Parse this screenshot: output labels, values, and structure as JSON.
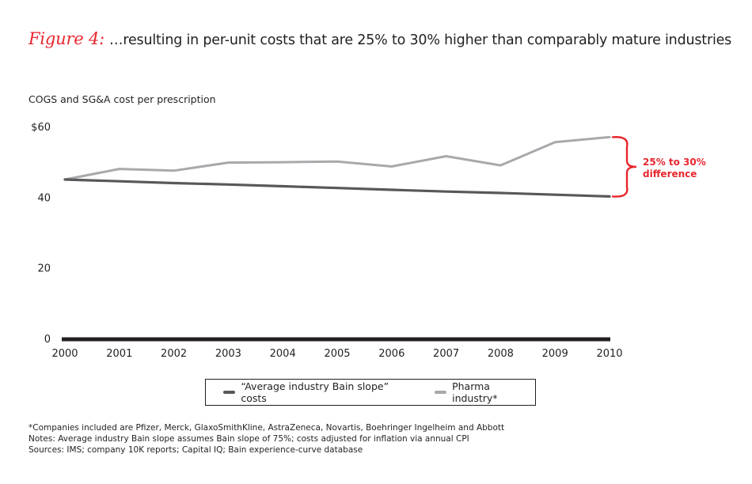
{
  "header": {
    "figure_label": "Figure 4:",
    "title": "…resulting in per-unit costs that are 25% to 30% higher than comparably mature industries"
  },
  "colors": {
    "accent_red": "#e8262e",
    "bain_line": "#58585a",
    "pharma_line": "#a7a9ac",
    "axis": "#231f20"
  },
  "chart_data": {
    "type": "line",
    "title": "…resulting in per-unit costs that are 25% to 30% higher than comparably mature industries",
    "xlabel": "",
    "ylabel": "COGS and SG&A cost per prescription",
    "x": [
      2000,
      2001,
      2002,
      2003,
      2004,
      2005,
      2006,
      2007,
      2008,
      2009,
      2010
    ],
    "x_tick_labels": [
      "2000",
      "2001",
      "2002",
      "2003",
      "2004",
      "2005",
      "2006",
      "2007",
      "2008",
      "2009",
      "2010"
    ],
    "y_ticks": [
      0,
      20,
      40,
      60
    ],
    "y_tick_labels": [
      "0",
      "20",
      "40",
      "$60"
    ],
    "ylim": [
      0,
      60
    ],
    "grid": false,
    "series": [
      {
        "name": "“Average industry Bain slope” costs",
        "color": "#58585a",
        "values": [
          45.0,
          44.5,
          44.0,
          43.6,
          43.1,
          42.6,
          42.1,
          41.6,
          41.2,
          40.7,
          40.2
        ]
      },
      {
        "name": "Pharma industry*",
        "color": "#a7a9ac",
        "values": [
          45.0,
          48.0,
          47.5,
          49.8,
          49.9,
          50.1,
          48.7,
          51.6,
          49.0,
          55.6,
          57.0
        ]
      }
    ],
    "annotations": [
      {
        "text_line1": "25% to 30%",
        "text_line2": "difference",
        "color": "#e8262e",
        "type": "brace",
        "at_x": 2010
      }
    ],
    "legend": {
      "placement": "bottom-center"
    }
  },
  "footnotes": [
    "*Companies included are Pfizer, Merck, GlaxoSmithKline, AstraZeneca, Novartis, Boehringer Ingelheim and Abbott",
    "Notes: Average industry Bain slope assumes Bain slope of 75%; costs adjusted for inflation via annual CPI",
    "Sources: IMS; company 10K reports; Capital IQ; Bain experience-curve database"
  ]
}
